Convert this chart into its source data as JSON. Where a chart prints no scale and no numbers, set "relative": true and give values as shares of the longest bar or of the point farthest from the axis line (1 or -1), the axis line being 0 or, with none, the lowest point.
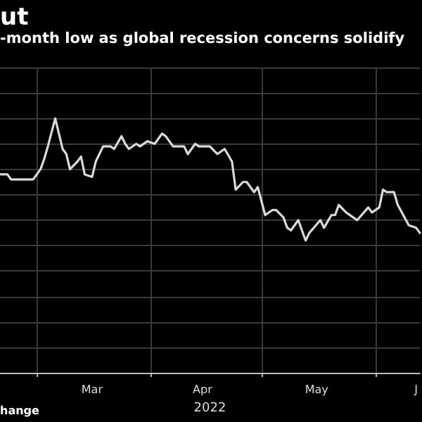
{
  "chart_data": {
    "type": "line",
    "title": "ut",
    "subtitle": "-month low as global recession concerns solidify",
    "xlabel": "2022",
    "annotations": [
      "hange"
    ],
    "relative": true,
    "grid": true,
    "marker": "none",
    "line_style": "solid",
    "xlim": [
      "2022-02-19",
      "2022-06-13"
    ],
    "xticks": [
      {
        "value": "2022-03-01",
        "label": null
      },
      {
        "value": "2022-03-16",
        "label": "Mar"
      },
      {
        "value": "2022-04-01",
        "label": null
      },
      {
        "value": "2022-04-15",
        "label": "Apr"
      },
      {
        "value": "2022-05-01",
        "label": null
      },
      {
        "value": "2022-05-16",
        "label": "May"
      },
      {
        "value": "2022-06-01",
        "label": null
      },
      {
        "value": "2022-06-12",
        "label": "J"
      }
    ],
    "x": [
      "2022-02-19",
      "2022-02-21",
      "2022-02-22",
      "2022-02-24",
      "2022-02-25",
      "2022-02-28",
      "2022-03-02",
      "2022-03-03",
      "2022-03-04",
      "2022-03-06",
      "2022-03-08",
      "2022-03-09",
      "2022-03-10",
      "2022-03-12",
      "2022-03-13",
      "2022-03-14",
      "2022-03-16",
      "2022-03-17",
      "2022-03-19",
      "2022-03-21",
      "2022-03-22",
      "2022-03-24",
      "2022-03-25",
      "2022-03-26",
      "2022-03-28",
      "2022-03-29",
      "2022-03-31",
      "2022-04-02",
      "2022-04-04",
      "2022-04-05",
      "2022-04-07",
      "2022-04-10",
      "2022-04-11",
      "2022-04-13",
      "2022-04-14",
      "2022-04-17",
      "2022-04-19",
      "2022-04-21",
      "2022-04-23",
      "2022-04-24",
      "2022-04-26",
      "2022-04-27",
      "2022-04-29",
      "2022-04-30",
      "2022-05-02",
      "2022-05-04",
      "2022-05-05",
      "2022-05-07",
      "2022-05-08",
      "2022-05-09",
      "2022-05-11",
      "2022-05-13",
      "2022-05-14",
      "2022-05-17",
      "2022-05-18",
      "2022-05-20",
      "2022-05-21",
      "2022-05-22",
      "2022-05-24",
      "2022-05-26",
      "2022-05-27",
      "2022-05-30",
      "2022-05-31",
      "2022-06-02",
      "2022-06-03",
      "2022-06-04",
      "2022-06-06",
      "2022-06-07",
      "2022-06-10",
      "2022-06-12",
      "2022-06-13"
    ],
    "series": [
      {
        "color": "#d9d9d9",
        "values": [
          0.78,
          0.78,
          0.76,
          0.76,
          0.76,
          0.76,
          0.8,
          0.84,
          0.89,
          1,
          0.88,
          0.86,
          0.8,
          0.83,
          0.85,
          0.78,
          0.77,
          0.83,
          0.89,
          0.89,
          0.88,
          0.93,
          0.9,
          0.88,
          0.9,
          0.89,
          0.91,
          0.9,
          0.94,
          0.93,
          0.89,
          0.89,
          0.86,
          0.9,
          0.89,
          0.89,
          0.86,
          0.88,
          0.83,
          0.72,
          0.75,
          0.75,
          0.71,
          0.73,
          0.62,
          0.64,
          0.64,
          0.61,
          0.57,
          0.56,
          0.6,
          0.52,
          0.55,
          0.6,
          0.57,
          0.62,
          0.62,
          0.66,
          0.63,
          0.61,
          0.6,
          0.65,
          0.63,
          0.65,
          0.72,
          0.71,
          0.71,
          0.66,
          0.58,
          0.57,
          0.55
        ]
      }
    ]
  }
}
